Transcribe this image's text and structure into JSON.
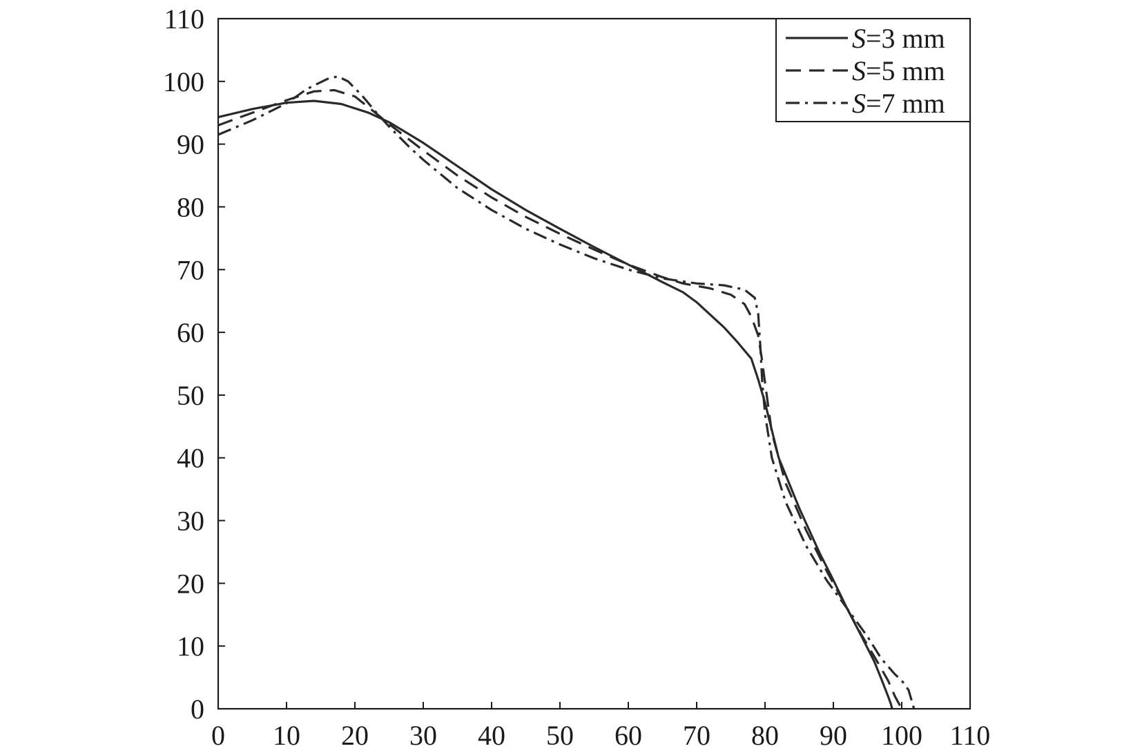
{
  "chart_data": {
    "type": "line",
    "title": "",
    "xlabel": "",
    "ylabel": "",
    "xlim": [
      0,
      110
    ],
    "ylim": [
      0,
      110
    ],
    "xticks": [
      "0",
      "10",
      "20",
      "30",
      "40",
      "50",
      "60",
      "70",
      "80",
      "90",
      "100",
      "110"
    ],
    "yticks": [
      "0",
      "10",
      "20",
      "30",
      "40",
      "50",
      "60",
      "70",
      "80",
      "90",
      "100",
      "110"
    ],
    "grid": false,
    "legend_position": "top-right",
    "series": [
      {
        "name_prefix": "S",
        "name_suffix": "=3 mm",
        "dash": "solid",
        "color": "#2a2a2a",
        "x": [
          0,
          5,
          10,
          14,
          18,
          22,
          25,
          30,
          35,
          40,
          45,
          50,
          55,
          60,
          65,
          68,
          70,
          72,
          74,
          76,
          78,
          79,
          80,
          82,
          85,
          88,
          90,
          92,
          94,
          96,
          97,
          98,
          98.4,
          98.6
        ],
        "y": [
          94.3,
          95.6,
          96.6,
          96.9,
          96.4,
          95.0,
          93.5,
          90.2,
          86.5,
          82.8,
          79.5,
          76.5,
          73.6,
          70.8,
          68.0,
          66.4,
          64.8,
          62.8,
          60.8,
          58.4,
          55.8,
          52.5,
          48.8,
          40.0,
          32.0,
          24.8,
          20.5,
          16.0,
          11.8,
          7.5,
          4.8,
          2.0,
          0.8,
          0
        ]
      },
      {
        "name_prefix": "S",
        "name_suffix": "=5 mm",
        "dash": "dashed",
        "color": "#2a2a2a",
        "x": [
          0,
          5,
          10,
          14,
          17,
          20,
          23,
          25,
          30,
          35,
          40,
          45,
          50,
          55,
          60,
          65,
          68,
          72,
          75,
          77,
          78,
          79,
          79.5,
          80,
          81,
          83,
          86,
          89,
          92,
          94,
          96,
          98,
          99,
          100
        ],
        "y": [
          93.0,
          95.0,
          97.0,
          98.4,
          98.6,
          97.6,
          95.0,
          93.2,
          89.0,
          85.0,
          81.5,
          78.4,
          75.7,
          73.2,
          70.8,
          68.8,
          67.8,
          67.0,
          66.0,
          64.5,
          62.5,
          59.5,
          56.0,
          52.0,
          44.0,
          36.0,
          28.5,
          22.0,
          16.0,
          12.0,
          8.3,
          4.5,
          2.0,
          0
        ]
      },
      {
        "name_prefix": "S",
        "name_suffix": "=7 mm",
        "dash": "dashdot",
        "color": "#2a2a2a",
        "x": [
          0,
          5,
          10,
          13,
          16,
          17.5,
          19,
          21,
          23,
          25,
          28,
          30,
          35,
          40,
          45,
          50,
          55,
          60,
          65,
          70,
          74,
          77,
          78.5,
          79,
          79.3,
          79.6,
          80,
          81,
          83,
          86,
          89,
          92,
          95,
          97,
          99,
          100,
          101,
          101.8
        ],
        "y": [
          91.5,
          93.8,
          96.5,
          98.8,
          100.4,
          100.8,
          100.0,
          97.8,
          95.2,
          92.8,
          89.5,
          87.5,
          83.0,
          79.5,
          76.5,
          74.0,
          71.8,
          70.0,
          68.6,
          67.8,
          67.5,
          66.8,
          65.5,
          63.0,
          58.0,
          52.0,
          47.0,
          40.0,
          33.0,
          26.0,
          20.5,
          16.0,
          11.5,
          8.0,
          5.5,
          4.5,
          3.0,
          0
        ]
      }
    ]
  }
}
